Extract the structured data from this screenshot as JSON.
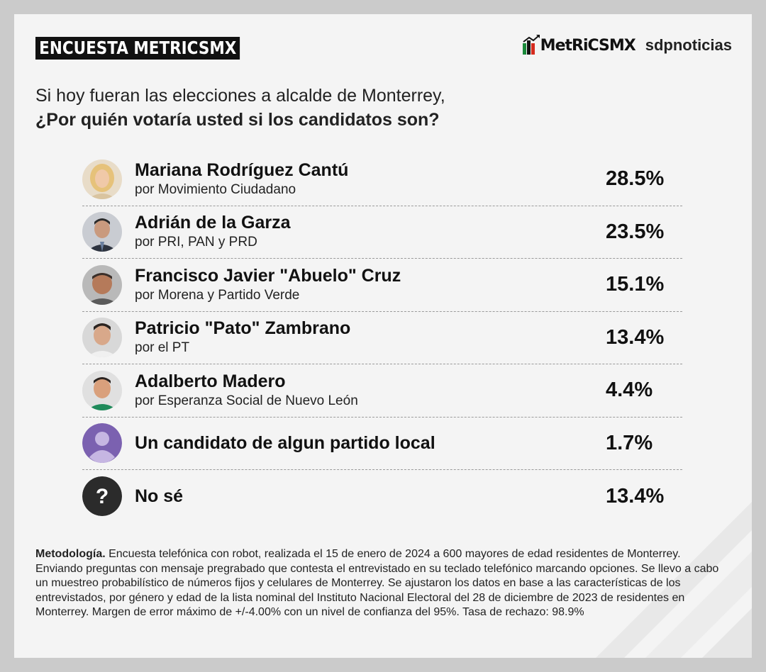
{
  "header": {
    "title": "ENCUESTA METRICSMX",
    "logo_metrics": "MetRiCSMX",
    "logo_sdp": "sdpnoticias"
  },
  "question": {
    "line1": "Si hoy fueran las elecciones a alcalde de Monterrey,",
    "line2": "¿Por quién votaría usted si los candidatos son?"
  },
  "candidates": [
    {
      "name": "Mariana Rodríguez Cantú",
      "party": "por Movimiento Ciudadano",
      "pct": "28.5%",
      "value": 28.5,
      "avatar": "photo-mariana"
    },
    {
      "name": "Adrián de la Garza",
      "party": "por PRI, PAN y PRD",
      "pct": "23.5%",
      "value": 23.5,
      "avatar": "photo-adrian"
    },
    {
      "name": "Francisco Javier \"Abuelo\" Cruz",
      "party": "por Morena y Partido Verde",
      "pct": "15.1%",
      "value": 15.1,
      "avatar": "photo-francisco"
    },
    {
      "name": "Patricio \"Pato\" Zambrano",
      "party": "por el PT",
      "pct": "13.4%",
      "value": 13.4,
      "avatar": "photo-patricio"
    },
    {
      "name": "Adalberto Madero",
      "party": "por Esperanza Social de Nuevo León",
      "pct": "4.4%",
      "value": 4.4,
      "avatar": "photo-adalberto"
    },
    {
      "name": "Un candidato de algun partido local",
      "party": "",
      "pct": "1.7%",
      "value": 1.7,
      "avatar": "generic-user-icon"
    },
    {
      "name": "No sé",
      "party": "",
      "pct": "13.4%",
      "value": 13.4,
      "avatar": "question-mark-icon"
    }
  ],
  "methodology": {
    "label": "Metodología.",
    "text": " Encuesta telefónica con robot, realizada el 15 de enero de 2024 a 600 mayores de edad residentes de Monterrey. Enviando preguntas con mensaje pregrabado que contesta el entrevistado en su teclado telefónico marcando opciones. Se llevo a cabo un muestreo probabilístico de números fijos y celulares de Monterrey. Se ajustaron los datos en base a las características de los entrevistados, por género y edad de la lista nominal del Instituto Nacional Electoral del 28 de diciembre de 2023 de residentes en Monterrey. Margen de error máximo de +/-4.00% con un nivel de confianza del 95%. Tasa de rechazo: 98.9%"
  },
  "colors": {
    "background": "#f4f4f4",
    "frame": "#cbcbcb",
    "title_bg": "#111111",
    "generic_avatar": "#7b61b0",
    "question_avatar": "#2b2b2b"
  }
}
